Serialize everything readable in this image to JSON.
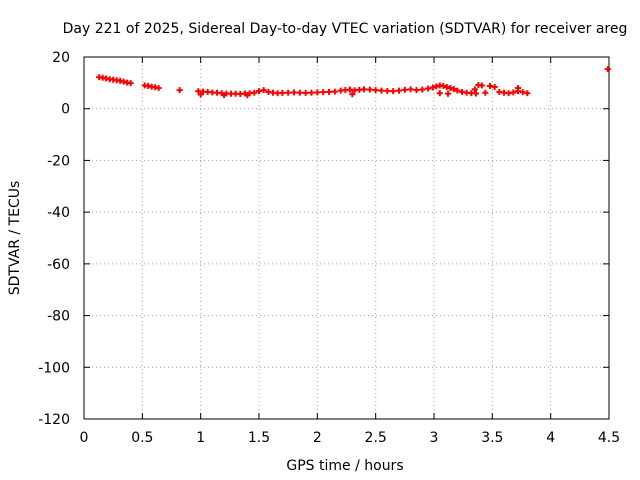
{
  "chart_data": {
    "type": "scatter",
    "title": "Day 221 of 2025, Sidereal Day-to-day VTEC variation (SDTVAR) for receiver areg",
    "xlabel": "GPS time / hours",
    "ylabel": "SDTVAR / TECUs",
    "xlim": [
      0,
      4.5
    ],
    "ylim": [
      -120,
      20
    ],
    "xticks": [
      0,
      0.5,
      1,
      1.5,
      2,
      2.5,
      3,
      3.5,
      4,
      4.5
    ],
    "xtick_labels": [
      "0",
      "0.5",
      "1",
      "1.5",
      "2",
      "2.5",
      "3",
      "3.5",
      "4",
      "4.5"
    ],
    "yticks": [
      20,
      0,
      -20,
      -40,
      -60,
      -80,
      -100,
      -120
    ],
    "ytick_labels": [
      "20",
      "0",
      "-20",
      "-40",
      "-60",
      "-80",
      "-100",
      "-120"
    ],
    "grid": true,
    "marker": "plus",
    "color": "#ff0000",
    "series": [
      {
        "name": "SDTVAR",
        "x": [
          0.13,
          0.16,
          0.19,
          0.22,
          0.25,
          0.28,
          0.31,
          0.34,
          0.37,
          0.4,
          0.52,
          0.55,
          0.58,
          0.61,
          0.64,
          0.82,
          0.98,
          1.02,
          1.06,
          1.1,
          1.14,
          1.18,
          1.22,
          1.26,
          1.3,
          1.34,
          1.38,
          1.42,
          1.46,
          1.5,
          1.54,
          1.58,
          1.62,
          1.66,
          1.7,
          1.75,
          1.8,
          1.85,
          1.9,
          1.95,
          2.0,
          2.05,
          2.1,
          2.15,
          2.2,
          2.24,
          2.28,
          2.32,
          2.36,
          2.4,
          2.45,
          2.5,
          2.55,
          2.6,
          2.65,
          2.7,
          2.75,
          2.8,
          2.85,
          2.9,
          2.95,
          2.99,
          3.02,
          3.05,
          3.08,
          3.11,
          3.14,
          3.17,
          3.2,
          3.24,
          3.28,
          3.32,
          3.35,
          3.38,
          3.41,
          3.44,
          3.48,
          3.52,
          3.56,
          3.6,
          3.64,
          3.68,
          3.72,
          3.76,
          3.8,
          1.0,
          1.2,
          1.4,
          2.3,
          3.05,
          3.12,
          3.36,
          3.72,
          4.49
        ],
        "y": [
          12.2,
          12.0,
          11.7,
          11.4,
          11.2,
          11.0,
          10.8,
          10.5,
          10.1,
          9.9,
          9.0,
          8.8,
          8.5,
          8.3,
          8.0,
          7.2,
          6.8,
          6.6,
          6.5,
          6.3,
          6.2,
          6.0,
          5.9,
          5.8,
          5.8,
          5.7,
          5.9,
          6.0,
          6.2,
          6.8,
          7.2,
          6.5,
          6.2,
          6.0,
          6.1,
          6.2,
          6.3,
          6.2,
          6.1,
          6.2,
          6.3,
          6.4,
          6.5,
          6.6,
          7.0,
          7.2,
          7.4,
          7.1,
          7.3,
          7.5,
          7.4,
          7.2,
          7.0,
          6.9,
          6.8,
          7.0,
          7.3,
          7.5,
          7.2,
          7.4,
          7.8,
          8.2,
          8.6,
          9.0,
          8.8,
          8.4,
          8.0,
          7.6,
          7.0,
          6.5,
          6.2,
          6.0,
          7.5,
          9.2,
          9.0,
          6.2,
          8.8,
          8.4,
          6.5,
          6.2,
          6.0,
          6.3,
          6.8,
          6.4,
          6.0,
          5.5,
          5.3,
          5.2,
          5.6,
          6.0,
          5.8,
          5.9,
          8.0,
          15.3
        ]
      }
    ]
  }
}
